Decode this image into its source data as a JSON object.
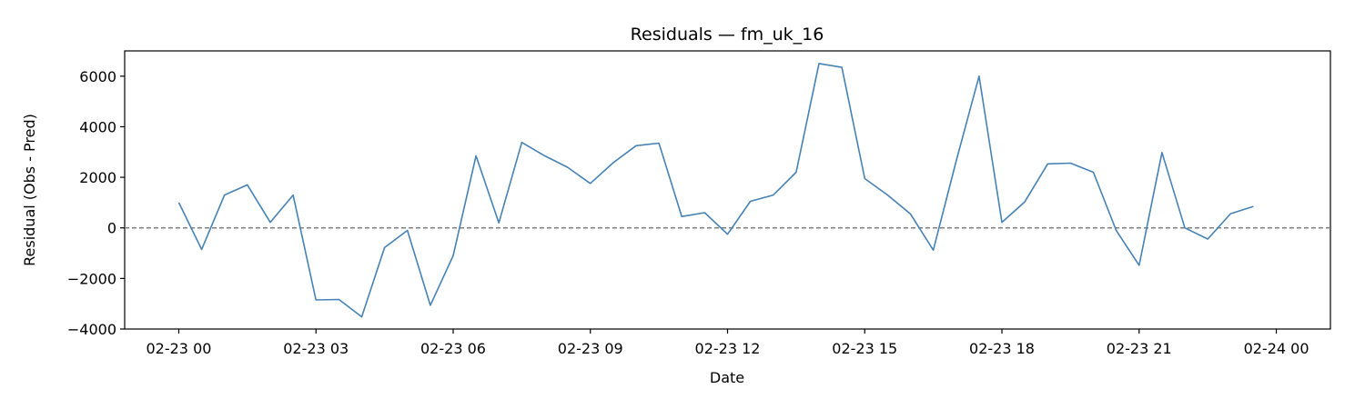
{
  "chart_data": {
    "type": "line",
    "title": "Residuals — fm_uk_16",
    "xlabel": "Date",
    "ylabel": "Residual (Obs - Pred)",
    "x_unit": "hours",
    "x_start": "2024-02-23 00:00",
    "xlim": [
      "2024-02-22 22:49",
      "2024-02-24 01:11"
    ],
    "ylim": [
      -4000,
      7000
    ],
    "y_ticks": [
      -4000,
      -2000,
      0,
      2000,
      4000,
      6000
    ],
    "y_tick_labels": [
      "−4000",
      "−2000",
      "0",
      "2000",
      "4000",
      "6000"
    ],
    "x_tick_labels": [
      "02-23 00",
      "02-23 03",
      "02-23 06",
      "02-23 09",
      "02-23 12",
      "02-23 15",
      "02-23 18",
      "02-23 21",
      "02-24 00"
    ],
    "grid": false,
    "legend": "none",
    "reference_line": {
      "y": 0,
      "style": "dashed",
      "color": "#808080"
    },
    "series": [
      {
        "color": "#4682b4",
        "x": [
          "2024-02-23 00:00",
          "2024-02-23 00:30",
          "2024-02-23 01:00",
          "2024-02-23 01:30",
          "2024-02-23 02:00",
          "2024-02-23 02:30",
          "2024-02-23 03:00",
          "2024-02-23 03:30",
          "2024-02-23 04:00",
          "2024-02-23 04:30",
          "2024-02-23 05:00",
          "2024-02-23 05:30",
          "2024-02-23 06:00",
          "2024-02-23 06:30",
          "2024-02-23 07:00",
          "2024-02-23 07:30",
          "2024-02-23 08:00",
          "2024-02-23 08:30",
          "2024-02-23 09:00",
          "2024-02-23 09:30",
          "2024-02-23 10:00",
          "2024-02-23 10:30",
          "2024-02-23 11:00",
          "2024-02-23 11:30",
          "2024-02-23 12:00",
          "2024-02-23 12:30",
          "2024-02-23 13:00",
          "2024-02-23 13:30",
          "2024-02-23 14:00",
          "2024-02-23 14:30",
          "2024-02-23 15:00",
          "2024-02-23 15:30",
          "2024-02-23 16:00",
          "2024-02-23 16:30",
          "2024-02-23 17:00",
          "2024-02-23 17:30",
          "2024-02-23 18:00",
          "2024-02-23 18:30",
          "2024-02-23 19:00",
          "2024-02-23 19:30",
          "2024-02-23 20:00",
          "2024-02-23 20:30",
          "2024-02-23 21:00",
          "2024-02-23 21:30",
          "2024-02-23 22:00",
          "2024-02-23 22:30",
          "2024-02-23 23:00",
          "2024-02-23 23:30"
        ],
        "y": [
          1000,
          -850,
          1300,
          1700,
          220,
          1300,
          -2850,
          -2830,
          -3520,
          -780,
          -100,
          -3060,
          -1100,
          2850,
          200,
          3380,
          2850,
          2400,
          1760,
          2580,
          3250,
          3350,
          450,
          600,
          -250,
          1050,
          1300,
          2200,
          6500,
          6350,
          1950,
          1300,
          550,
          -880,
          2650,
          6000,
          220,
          1030,
          2530,
          2560,
          2200,
          -100,
          -1480,
          2980,
          0,
          -440,
          560,
          850
        ]
      }
    ]
  }
}
